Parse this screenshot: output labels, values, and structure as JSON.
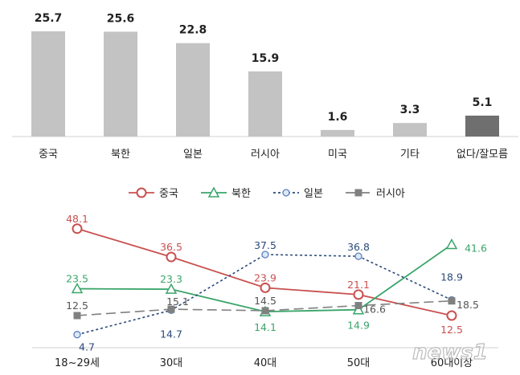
{
  "chart_data": [
    {
      "type": "bar",
      "title": "",
      "categories": [
        "중국",
        "북한",
        "일본",
        "러시아",
        "미국",
        "기타",
        "없다/잘모름"
      ],
      "values": [
        25.7,
        25.6,
        22.8,
        15.9,
        1.6,
        3.3,
        5.1
      ],
      "value_labels": [
        "25.7",
        "25.6",
        "22.8",
        "15.9",
        "1.6",
        "3.3",
        "5.1"
      ],
      "colors": [
        "#c3c3c3",
        "#c3c3c3",
        "#c3c3c3",
        "#c3c3c3",
        "#c3c3c3",
        "#c3c3c3",
        "#6f6f6f"
      ],
      "ylim": [
        0,
        27
      ]
    },
    {
      "type": "line",
      "categories": [
        "18~29세",
        "30대",
        "40대",
        "50대",
        "60대이상"
      ],
      "ylim": [
        0,
        50
      ],
      "legend_position": "top",
      "series": [
        {
          "name": "중국",
          "color": "#c9504f",
          "marker": "circle",
          "dash": "solid",
          "values": [
            48.1,
            36.5,
            23.9,
            21.1,
            12.5
          ],
          "labels": [
            "48.1",
            "36.5",
            "23.9",
            "21.1",
            "12.5"
          ]
        },
        {
          "name": "북한",
          "color": "#3aa56a",
          "marker": "triangle",
          "dash": "solid",
          "values": [
            23.5,
            23.3,
            14.1,
            14.9,
            41.6
          ],
          "labels": [
            "23.5",
            "23.3",
            "14.1",
            "14.9",
            "41.6"
          ]
        },
        {
          "name": "일본",
          "color": "#2b4a7a",
          "marker": "circle-small",
          "dash": "dotted",
          "values": [
            4.7,
            14.7,
            37.5,
            36.8,
            18.9
          ],
          "labels": [
            "4.7",
            "14.7",
            "37.5",
            "36.8",
            "18.9"
          ]
        },
        {
          "name": "러시아",
          "color": "#808080",
          "marker": "square",
          "dash": "dashed",
          "values": [
            12.5,
            15.1,
            14.5,
            16.6,
            18.5
          ],
          "labels": [
            "12.5",
            "15.1",
            "14.5",
            "16.6",
            "18.5"
          ]
        }
      ]
    }
  ],
  "watermark": "news1"
}
